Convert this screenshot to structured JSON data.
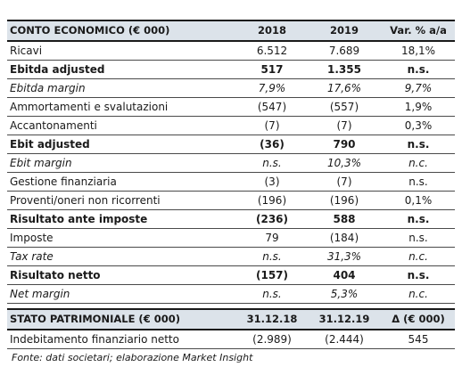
{
  "income_statement": {
    "header": {
      "label": "CONTO ECONOMICO (€ 000)",
      "c1": "2018",
      "c2": "2019",
      "c3": "Var. % a/a"
    },
    "rows": [
      {
        "label": "Ricavi",
        "c1": "6.512",
        "c2": "7.689",
        "c3": "18,1%",
        "style": "normal"
      },
      {
        "label": "Ebitda adjusted",
        "c1": "517",
        "c2": "1.355",
        "c3": "n.s.",
        "style": "bold"
      },
      {
        "label": "Ebitda margin",
        "c1": "7,9%",
        "c2": "17,6%",
        "c3": "9,7%",
        "style": "italic"
      },
      {
        "label": "Ammortamenti e svalutazioni",
        "c1": "(547)",
        "c2": "(557)",
        "c3": "1,9%",
        "style": "normal"
      },
      {
        "label": "Accantonamenti",
        "c1": "(7)",
        "c2": "(7)",
        "c3": "0,3%",
        "style": "normal"
      },
      {
        "label": "Ebit adjusted",
        "c1": "(36)",
        "c2": "790",
        "c3": "n.s.",
        "style": "bold"
      },
      {
        "label": "Ebit margin",
        "c1": "n.s.",
        "c2": "10,3%",
        "c3": "n.c.",
        "style": "italic"
      },
      {
        "label": "Gestione finanziaria",
        "c1": "(3)",
        "c2": "(7)",
        "c3": "n.s.",
        "style": "normal"
      },
      {
        "label": "Proventi/oneri non ricorrenti",
        "c1": "(196)",
        "c2": "(196)",
        "c3": "0,1%",
        "style": "normal"
      },
      {
        "label": "Risultato ante imposte",
        "c1": "(236)",
        "c2": "588",
        "c3": "n.s.",
        "style": "bold"
      },
      {
        "label": "Imposte",
        "c1": "79",
        "c2": "(184)",
        "c3": "n.s.",
        "style": "normal"
      },
      {
        "label": "Tax rate",
        "c1": "n.s.",
        "c2": "31,3%",
        "c3": "n.c.",
        "style": "italic"
      },
      {
        "label": "Risultato netto",
        "c1": "(157)",
        "c2": "404",
        "c3": "n.s.",
        "style": "bold"
      },
      {
        "label": "Net margin",
        "c1": "n.s.",
        "c2": "5,3%",
        "c3": "n.c.",
        "style": "italic"
      }
    ]
  },
  "balance_sheet": {
    "header": {
      "label": "STATO PATRIMONIALE (€ 000)",
      "c1": "31.12.18",
      "c2": "31.12.19",
      "c3": "Δ (€ 000)"
    },
    "rows": [
      {
        "label": "Indebitamento finanziario netto",
        "c1": "(2.989)",
        "c2": "(2.444)",
        "c3": "545",
        "style": "normal"
      }
    ]
  },
  "source_note": "Fonte: dati societari; elaborazione Market Insight"
}
